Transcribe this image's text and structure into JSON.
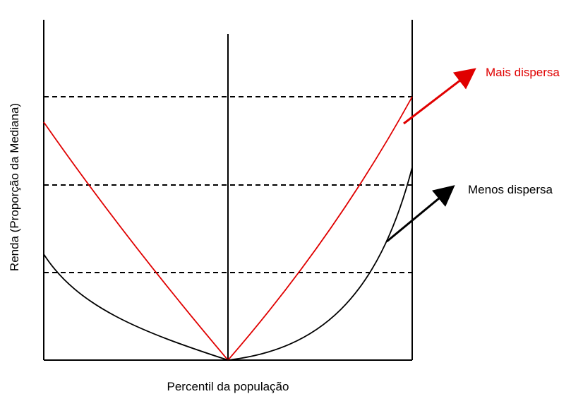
{
  "y_axis_label": "Renda (Proporção da Mediana)",
  "x_axis_label": "Percentil da população",
  "labels": {
    "more": "Mais dispersa",
    "less": "Menos dispersa"
  }
}
